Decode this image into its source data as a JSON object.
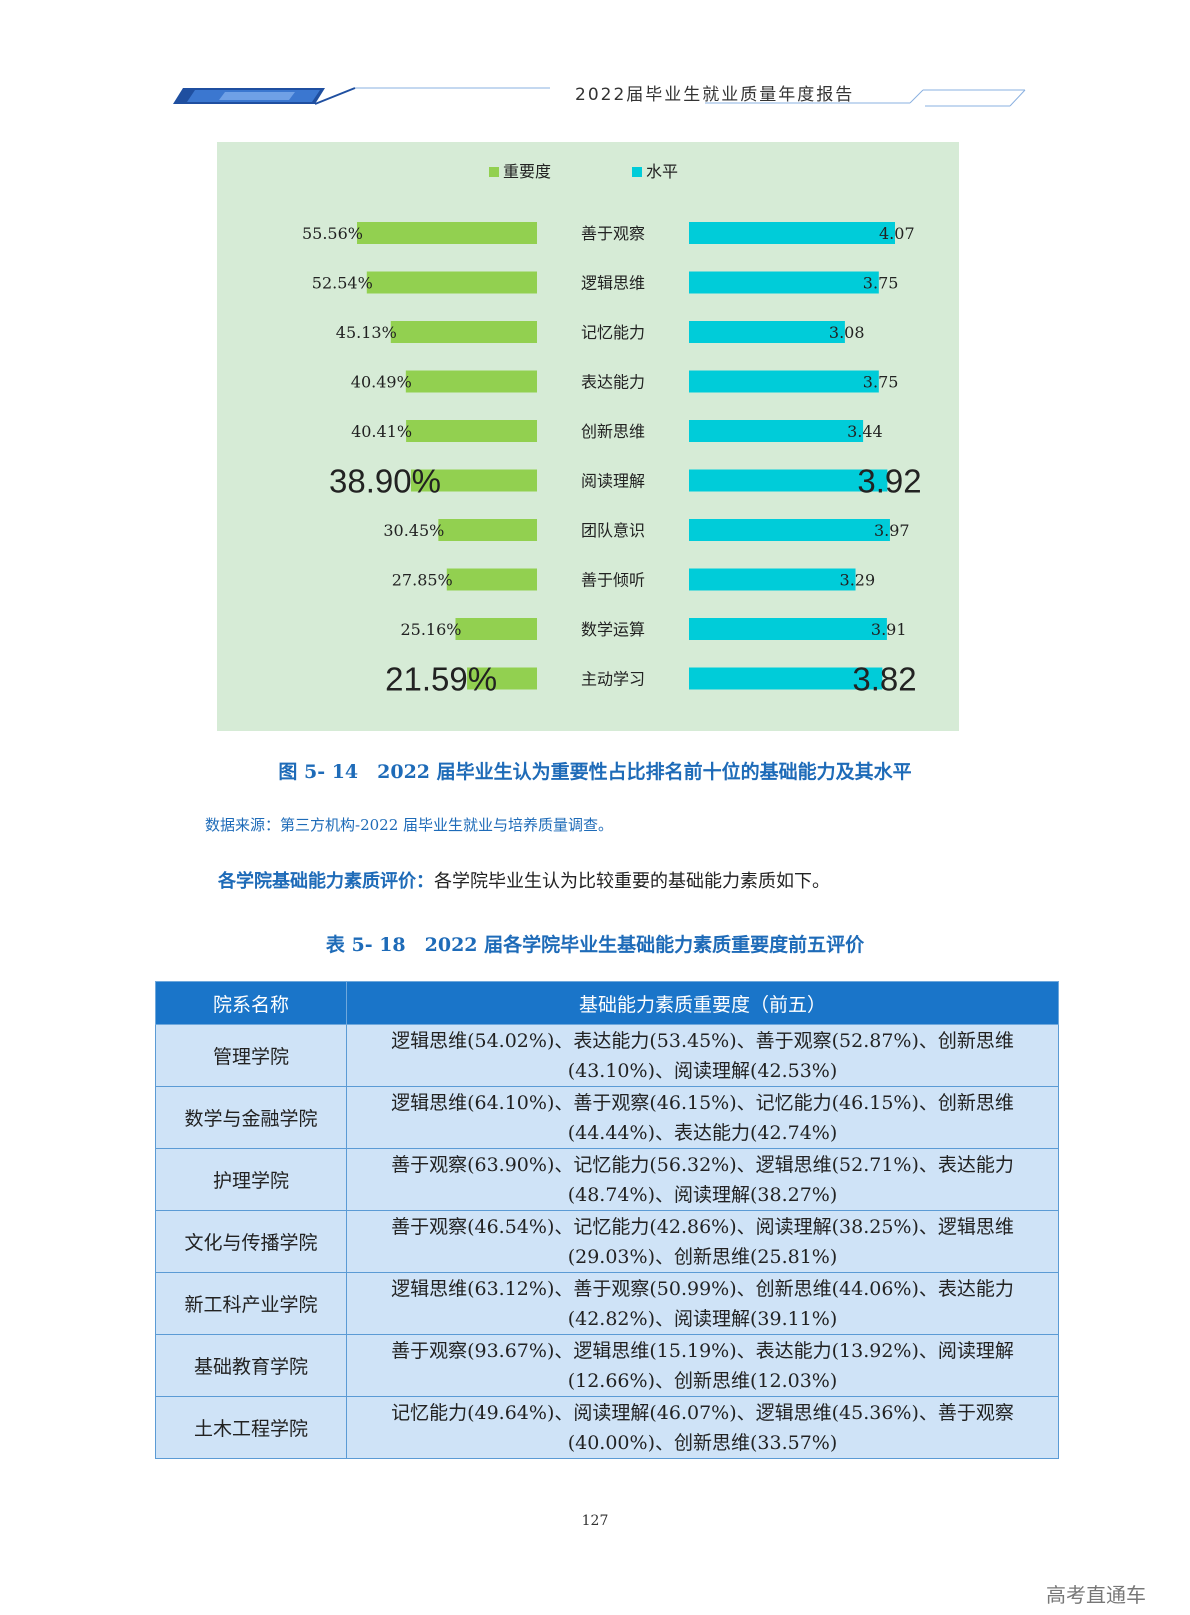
{
  "header": {
    "title": "2022届毕业生就业质量年度报告"
  },
  "chart_data": {
    "type": "bar",
    "legend": [
      "重要度",
      "水平"
    ],
    "categories": [
      "善于观察",
      "逻辑思维",
      "记忆能力",
      "表达能力",
      "创新思维",
      "阅读理解",
      "团队意识",
      "善于倾听",
      "数学运算",
      "主动学习"
    ],
    "series": [
      {
        "name": "重要度",
        "labels": [
          "55.56%",
          "52.54%",
          "45.13%",
          "40.49%",
          "40.41%",
          "38.90%",
          "30.45%",
          "27.85%",
          "25.16%",
          "21.59%"
        ],
        "values": [
          55.56,
          52.54,
          45.13,
          40.49,
          40.41,
          38.9,
          30.45,
          27.85,
          25.16,
          21.59
        ]
      },
      {
        "name": "水平",
        "labels": [
          "4.07",
          "3.75",
          "3.08",
          "3.75",
          "3.44",
          "3.92",
          "3.97",
          "3.29",
          "3.91",
          "3.82"
        ],
        "values": [
          4.07,
          3.75,
          3.08,
          3.75,
          3.44,
          3.92,
          3.97,
          3.29,
          3.91,
          3.82
        ]
      }
    ],
    "emphasized_categories": [
      "阅读理解",
      "主动学习"
    ],
    "colors": {
      "importance": "#92d050",
      "level": "#00ccd9"
    }
  },
  "figure": {
    "caption": "图 5- 14　2022 届毕业生认为重要性占比排名前十位的基础能力及其水平",
    "source": "数据来源：第三方机构-2022 届毕业生就业与培养质量调查。"
  },
  "evaluation": {
    "lead": "各学院基础能力素质评价：",
    "text": "各学院毕业生认为比较重要的基础能力素质如下。"
  },
  "table": {
    "caption": "表 5- 18　2022 届各学院毕业生基础能力素质重要度前五评价",
    "headers": [
      "院系名称",
      "基础能力素质重要度（前五）"
    ],
    "rows": [
      {
        "college": "管理学院",
        "line1": "逻辑思维(54.02%)、表达能力(53.45%)、善于观察(52.87%)、创新思维",
        "line2": "(43.10%)、阅读理解(42.53%)"
      },
      {
        "college": "数学与金融学院",
        "line1": "逻辑思维(64.10%)、善于观察(46.15%)、记忆能力(46.15%)、创新思维",
        "line2": "(44.44%)、表达能力(42.74%)"
      },
      {
        "college": "护理学院",
        "line1": "善于观察(63.90%)、记忆能力(56.32%)、逻辑思维(52.71%)、表达能力",
        "line2": "(48.74%)、阅读理解(38.27%)"
      },
      {
        "college": "文化与传播学院",
        "line1": "善于观察(46.54%)、记忆能力(42.86%)、阅读理解(38.25%)、逻辑思维",
        "line2": "(29.03%)、创新思维(25.81%)"
      },
      {
        "college": "新工科产业学院",
        "line1": "逻辑思维(63.12%)、善于观察(50.99%)、创新思维(44.06%)、表达能力",
        "line2": "(42.82%)、阅读理解(39.11%)"
      },
      {
        "college": "基础教育学院",
        "line1": "善于观察(93.67%)、逻辑思维(15.19%)、表达能力(13.92%)、阅读理解",
        "line2": "(12.66%)、创新思维(12.03%)"
      },
      {
        "college": "土木工程学院",
        "line1": "记忆能力(49.64%)、阅读理解(46.07%)、逻辑思维(45.36%)、善于观察",
        "line2": "(40.00%)、创新思维(33.57%)"
      }
    ]
  },
  "page_number": "127",
  "watermark": "高考直通车"
}
